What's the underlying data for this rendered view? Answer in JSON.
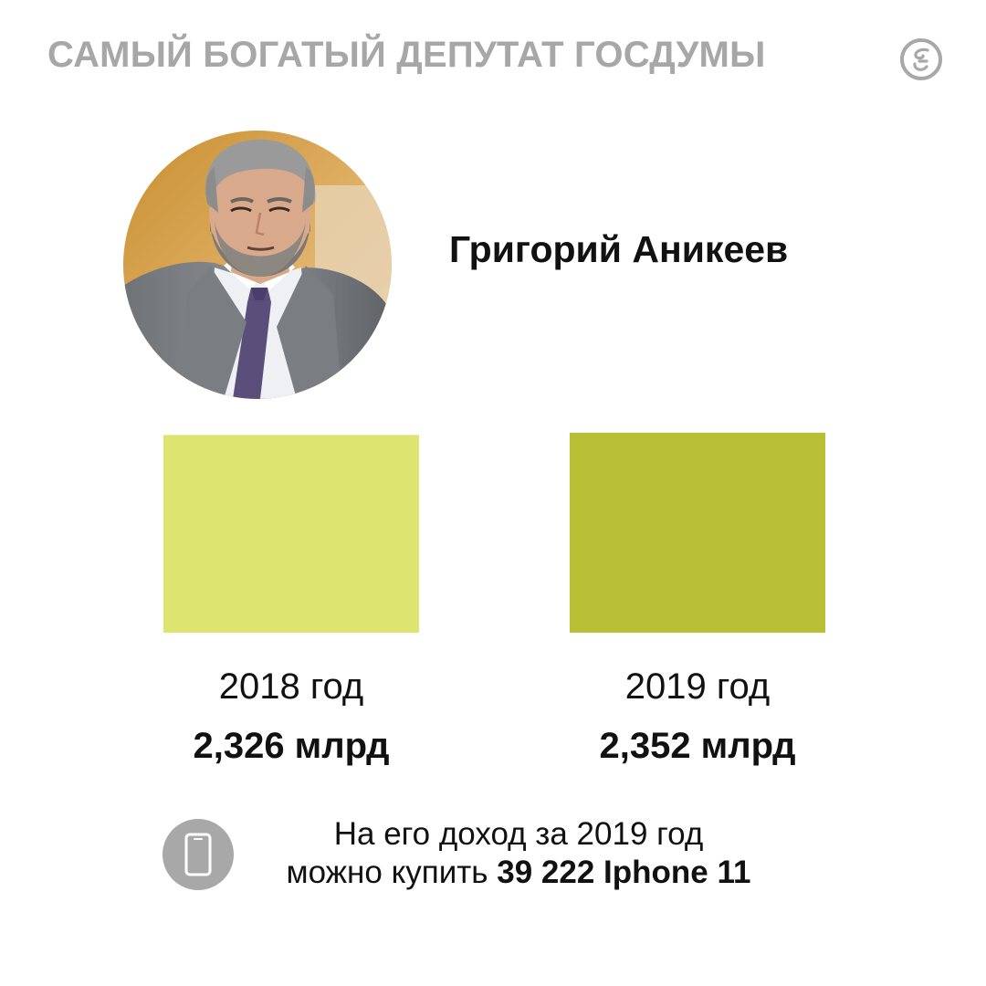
{
  "header": {
    "title": "САМЫЙ БОГАТЫЙ ДЕПУТАТ ГОСДУМЫ"
  },
  "person": {
    "name": "Григорий Аникеев"
  },
  "chart_data": {
    "type": "bar",
    "categories": [
      "2018 год",
      "2019 год"
    ],
    "values": [
      2.326,
      2.352
    ],
    "value_labels": [
      "2,326 млрд",
      "2,352 млрд"
    ],
    "colors": [
      "#dde46f",
      "#b9c036"
    ],
    "ylim": [
      0,
      2.352
    ]
  },
  "footer": {
    "line1": "На его доход за 2019 год",
    "line2_prefix": "можно купить",
    "line2_bold": "39 222 Iphone 11"
  },
  "icons": {
    "logo": "newspaper-logo-icon",
    "phone": "smartphone-icon"
  },
  "colors": {
    "title_gray": "#a7a7a7",
    "icon_gray": "#a8a8a8"
  }
}
